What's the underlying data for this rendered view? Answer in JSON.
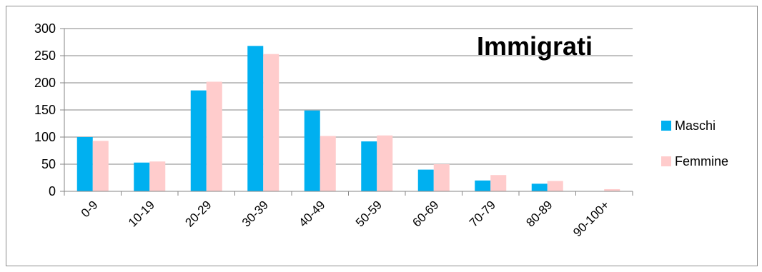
{
  "chart_data": {
    "type": "bar",
    "title": "Immigrati",
    "xlabel": "",
    "ylabel": "",
    "ylim": [
      0,
      300
    ],
    "yticks": [
      0,
      50,
      100,
      150,
      200,
      250,
      300
    ],
    "grid": true,
    "legend_position": "right",
    "categories": [
      "0-9",
      "10-19",
      "20-29",
      "30-39",
      "40-49",
      "50-59",
      "60-69",
      "70-79",
      "80-89",
      "90-100+"
    ],
    "series": [
      {
        "name": "Maschi",
        "color": "#00b0f0",
        "values": [
          100,
          53,
          186,
          268,
          149,
          92,
          40,
          20,
          14,
          0
        ]
      },
      {
        "name": "Femmine",
        "color": "#ffcccc",
        "values": [
          93,
          55,
          202,
          253,
          102,
          103,
          50,
          30,
          19,
          4
        ]
      }
    ]
  }
}
